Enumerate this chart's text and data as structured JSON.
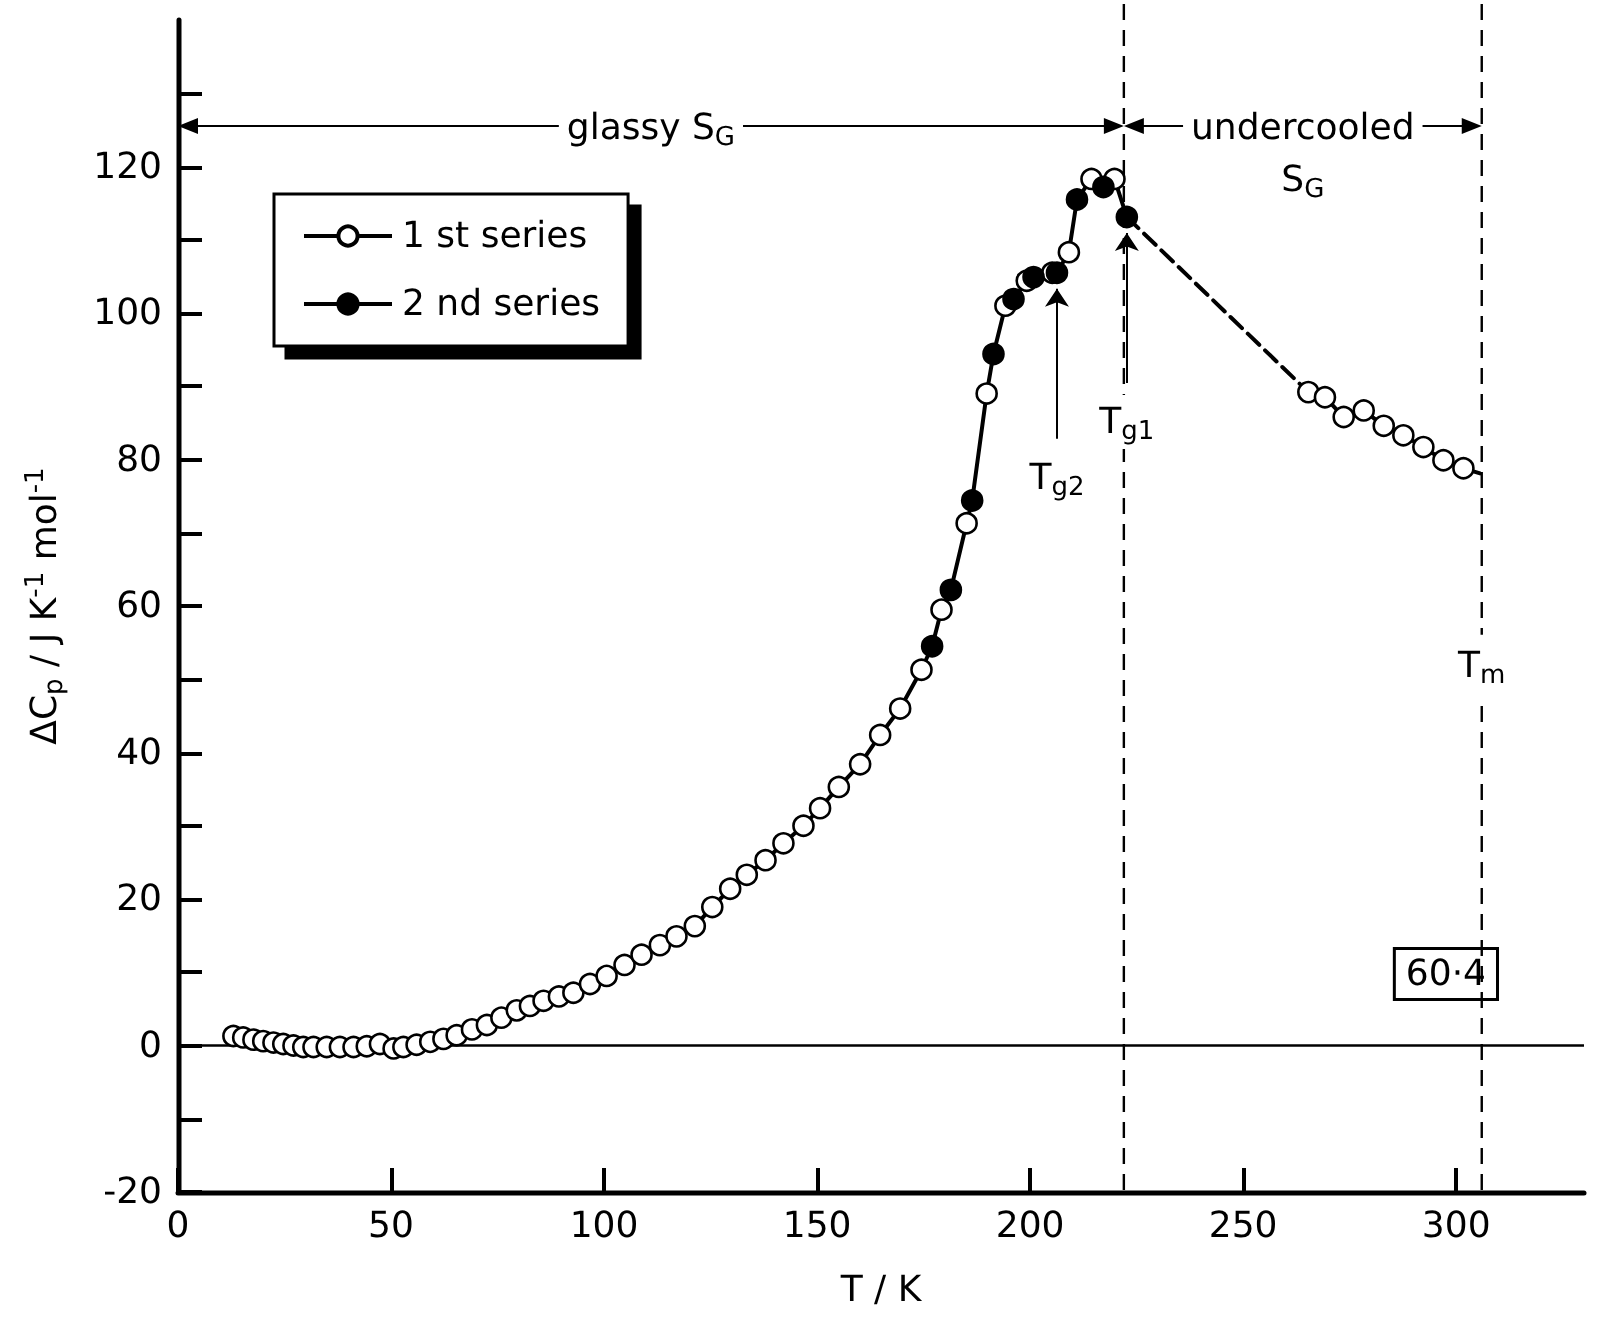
{
  "chart_data": {
    "type": "line",
    "xlabel": "T / K",
    "ylabel": "ΔC$_{p}$ / J K$^{-1}$ mol$^{-1}$",
    "xlim": [
      0,
      330
    ],
    "xticks": [
      0,
      50,
      100,
      150,
      200,
      250,
      300
    ],
    "ylim": [
      -20,
      140
    ],
    "yticks": [
      -20,
      {
        "value": -10,
        "label": null
      },
      0,
      {
        "value": 10,
        "label": null
      },
      20,
      {
        "value": 30,
        "label": null
      },
      40,
      {
        "value": 50,
        "label": null
      },
      60,
      {
        "value": 70,
        "label": null
      },
      80,
      {
        "value": 90,
        "label": null
      },
      100,
      {
        "value": 110,
        "label": null
      },
      120,
      {
        "value": 130,
        "label": null
      }
    ],
    "grid": false,
    "legend": "top left",
    "series": [
      {
        "color": "#000000",
        "marker": "none",
        "x": [
          13.0,
          15.3,
          17.7,
          20.0,
          22.4,
          24.7,
          27.1,
          29.4,
          31.8,
          34.9,
          38.0,
          41.2,
          44.3,
          47.4,
          50.6,
          52.9,
          56.0,
          59.2,
          62.3,
          65.4,
          69.0,
          72.5,
          75.9,
          79.5,
          82.6,
          85.8,
          89.4,
          92.8,
          96.7,
          100.6,
          104.8,
          108.8,
          113.1,
          117.0,
          121.3,
          125.4,
          129.6,
          133.5,
          137.9,
          142.1,
          146.8,
          150.7,
          155.1,
          160.1,
          164.8,
          169.5,
          174.5,
          177.0,
          179.2,
          181.4,
          185.1,
          186.4,
          189.8,
          191.4,
          194.2,
          196.1,
          199.2,
          200.8,
          205.2,
          206.3,
          209.1,
          211.0,
          214.4,
          217.2,
          219.8,
          222.7
        ],
        "values": [
          1.3,
          1.1,
          0.8,
          0.6,
          0.4,
          0.2,
          0,
          -0.2,
          -0.2,
          -0.2,
          -0.2,
          -0.2,
          -0.1,
          0.2,
          -0.4,
          -0.2,
          0.1,
          0.5,
          0.9,
          1.4,
          2.2,
          2.8,
          3.8,
          4.8,
          5.4,
          6.1,
          6.7,
          7.2,
          8.4,
          9.5,
          11.0,
          12.4,
          13.7,
          14.9,
          16.3,
          18.9,
          21.4,
          23.3,
          25.3,
          27.6,
          30.0,
          32.4,
          35.3,
          38.4,
          42.4,
          46.0,
          51.3,
          54.5,
          59.5,
          62.2,
          71.3,
          74.4,
          89.0,
          94.4,
          101.0,
          101.9,
          104.4,
          104.9,
          105.5,
          105.5,
          108.3,
          115.5,
          118.3,
          117.2,
          118.3,
          113.1
        ]
      },
      {
        "color": "#000000",
        "marker": "none",
        "line_style": "dashed",
        "x": [
          222.7,
          265.3
        ],
        "values": [
          113.1,
          89.2
        ]
      },
      {
        "color": "#000000",
        "marker": "none",
        "x": [
          265.3,
          269.2,
          273.6,
          278.3,
          283.0,
          287.6,
          292.3,
          297.0,
          301.7,
          305.6
        ],
        "values": [
          89.2,
          88.5,
          85.8,
          86.7,
          84.6,
          83.3,
          81.7,
          79.9,
          78.8,
          78.1
        ]
      },
      {
        "name": "1 st series",
        "type": "scatter",
        "color": "#ffffff",
        "marker": "circle",
        "x": [
          13.0,
          15.3,
          17.7,
          20.0,
          22.4,
          24.7,
          27.1,
          29.4,
          31.8,
          34.9,
          38.0,
          41.2,
          44.3,
          47.4,
          50.6,
          52.9,
          56.0,
          59.2,
          62.3,
          65.4,
          69.0,
          72.5,
          75.9,
          79.5,
          82.6,
          85.8,
          89.4,
          92.8,
          96.7,
          100.6,
          104.8,
          108.8,
          113.1,
          117.0,
          121.3,
          125.4,
          129.6,
          133.5,
          137.9,
          142.1,
          146.8,
          150.7,
          155.1,
          160.1,
          164.8,
          169.5,
          174.5,
          179.2,
          185.1,
          189.8,
          194.2,
          199.2,
          205.2,
          209.1,
          214.4,
          219.8,
          265.3,
          269.2,
          273.6,
          278.3,
          283.0,
          287.6,
          292.3,
          297.0,
          301.7
        ],
        "values": [
          1.3,
          1.1,
          0.8,
          0.6,
          0.4,
          0.2,
          0,
          -0.2,
          -0.2,
          -0.2,
          -0.2,
          -0.2,
          -0.1,
          0.2,
          -0.4,
          -0.2,
          0.1,
          0.5,
          0.9,
          1.4,
          2.2,
          2.8,
          3.8,
          4.8,
          5.4,
          6.1,
          6.7,
          7.2,
          8.4,
          9.5,
          11.0,
          12.4,
          13.7,
          14.9,
          16.3,
          18.9,
          21.4,
          23.3,
          25.3,
          27.6,
          30.0,
          32.4,
          35.3,
          38.4,
          42.4,
          46.0,
          51.3,
          59.5,
          71.3,
          89.0,
          101.0,
          104.4,
          105.5,
          108.3,
          118.3,
          118.3,
          89.2,
          88.5,
          85.8,
          86.7,
          84.6,
          83.3,
          81.7,
          79.9,
          78.8
        ]
      },
      {
        "name": "2 nd series",
        "type": "scatter",
        "color": "#000000",
        "marker": "circle",
        "x": [
          177.0,
          181.4,
          186.4,
          191.4,
          196.1,
          200.8,
          206.3,
          211.0,
          217.2,
          222.7
        ],
        "values": [
          54.5,
          62.2,
          74.4,
          94.4,
          101.9,
          104.9,
          105.5,
          115.5,
          117.2,
          113.1
        ]
      }
    ],
    "ref_lines": [
      {
        "axis": "y",
        "value": 0
      },
      {
        "axis": "x",
        "value": 222,
        "line_style": "dashed"
      },
      {
        "axis": "x",
        "value": 306,
        "line_style": "dashed",
        "label": "T$_{m}$"
      }
    ],
    "annotations": [
      {
        "text": "T$_{g2}$",
        "x": 206.3,
        "y": 105.5
      },
      {
        "text": "T$_{g1}$",
        "x": 222.7,
        "y": 113.1
      },
      "glassy S$_{G}$",
      "undercooled\nS$_{G}$",
      "60·4"
    ]
  }
}
